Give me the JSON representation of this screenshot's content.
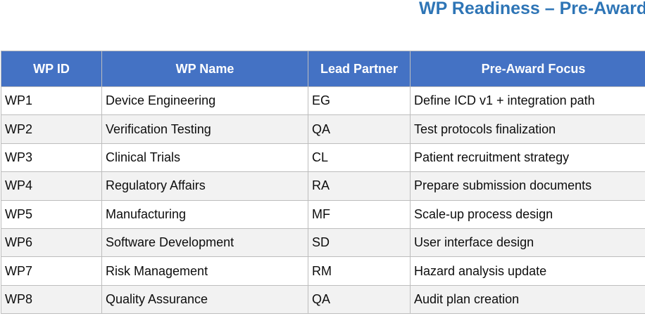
{
  "title": "WP Readiness – Pre-Award",
  "colors": {
    "title": "#2E75B6",
    "header_bg": "#4472C4",
    "header_text": "#FFFFFF",
    "row_bg": "#FFFFFF",
    "row_alt_bg": "#F2F2F2",
    "border": "#BDBDBD"
  },
  "table": {
    "columns": [
      "WP ID",
      "WP Name",
      "Lead Partner",
      "Pre-Award Focus"
    ],
    "rows": [
      {
        "wp_id": "WP1",
        "wp_name": "Device Engineering",
        "lead_partner": "EG",
        "pre_award_focus": "Define ICD v1 + integration path"
      },
      {
        "wp_id": "WP2",
        "wp_name": "Verification Testing",
        "lead_partner": "QA",
        "pre_award_focus": "Test protocols finalization"
      },
      {
        "wp_id": "WP3",
        "wp_name": "Clinical Trials",
        "lead_partner": "CL",
        "pre_award_focus": "Patient recruitment strategy"
      },
      {
        "wp_id": "WP4",
        "wp_name": "Regulatory Affairs",
        "lead_partner": "RA",
        "pre_award_focus": "Prepare submission documents"
      },
      {
        "wp_id": "WP5",
        "wp_name": "Manufacturing",
        "lead_partner": "MF",
        "pre_award_focus": "Scale-up process design"
      },
      {
        "wp_id": "WP6",
        "wp_name": "Software Development",
        "lead_partner": "SD",
        "pre_award_focus": "User interface design"
      },
      {
        "wp_id": "WP7",
        "wp_name": "Risk Management",
        "lead_partner": "RM",
        "pre_award_focus": "Hazard analysis update"
      },
      {
        "wp_id": "WP8",
        "wp_name": "Quality Assurance",
        "lead_partner": "QA",
        "pre_award_focus": "Audit plan creation"
      }
    ]
  }
}
